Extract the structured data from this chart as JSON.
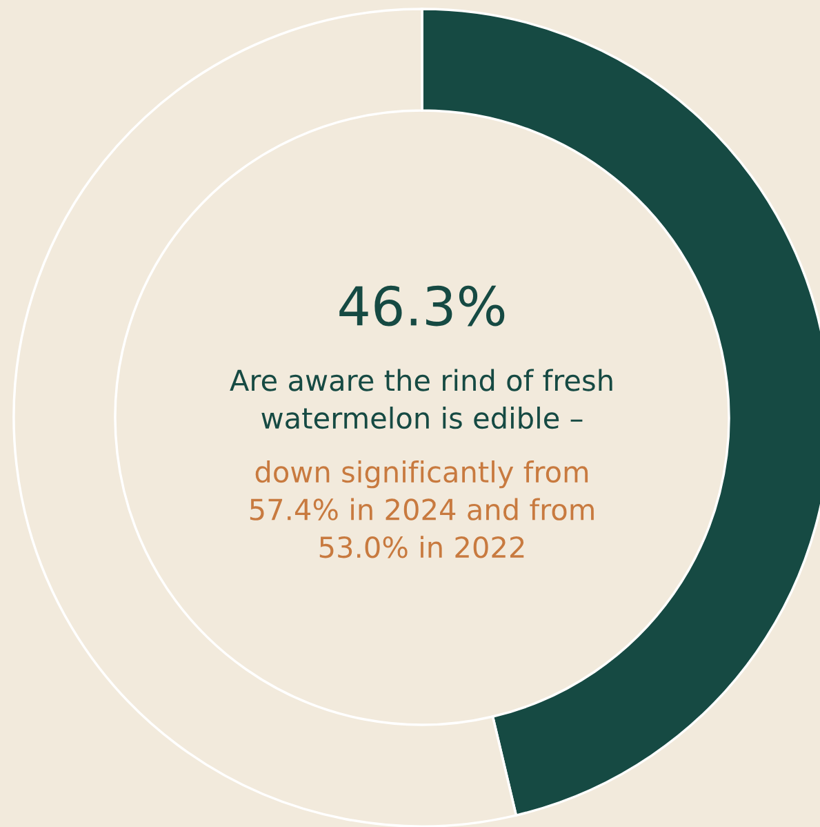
{
  "chart_data": {
    "type": "donut",
    "categories": [
      null,
      null
    ],
    "values": [
      46.3,
      53.7
    ],
    "colors": [
      "#164a43",
      "#f2eadc"
    ],
    "value_labels": [
      "46.3%",
      null
    ],
    "annotations": [
      "Are aware the rind of fresh\nwatermelon is edible –",
      "down significantly from\n57.4% in 2024 and from\n53.0% in 2022"
    ],
    "legend": false
  }
}
